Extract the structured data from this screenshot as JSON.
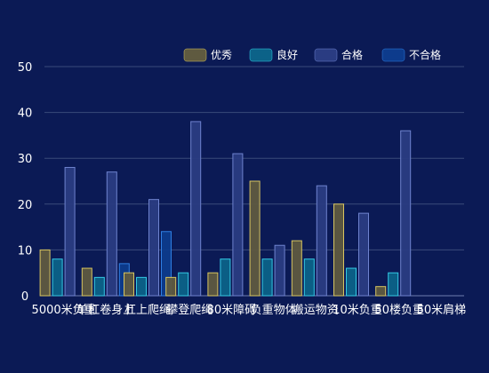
{
  "chart_data": {
    "type": "bar",
    "categories": [
      "5000米负重",
      "单杠卷身上",
      "杠上爬绳",
      "攀登爬绳",
      "80米障碍",
      "负重物体",
      "搬运物资",
      "10米负重",
      "50楼负重",
      "50米肩梯"
    ],
    "series": [
      {
        "name": "优秀",
        "values": [
          10,
          6,
          5,
          4,
          5,
          25,
          12,
          20,
          2,
          0
        ],
        "color": "#5f5a40",
        "stroke": "#d8c560"
      },
      {
        "name": "良好",
        "values": [
          8,
          4,
          4,
          5,
          8,
          8,
          8,
          6,
          5,
          0
        ],
        "color": "#0c6288",
        "stroke": "#34c9e4"
      },
      {
        "name": "合格",
        "values": [
          28,
          27,
          21,
          38,
          31,
          11,
          24,
          18,
          36,
          0
        ],
        "color": "#2a3c82",
        "stroke": "#6f83cf"
      },
      {
        "name": "不合格",
        "values": [
          0,
          7,
          14,
          0,
          0,
          0,
          0,
          0,
          0,
          0
        ],
        "color": "#0d3b8c",
        "stroke": "#2f7fe3"
      }
    ],
    "ylim": [
      0,
      50
    ],
    "yticks": [
      0,
      10,
      20,
      30,
      40,
      50
    ],
    "grid": true,
    "legend": "top-right"
  }
}
